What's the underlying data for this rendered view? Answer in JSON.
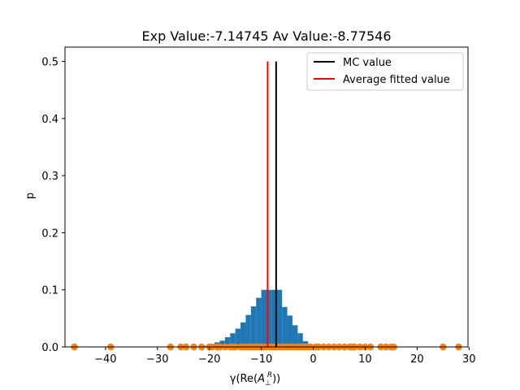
{
  "chart_data": {
    "type": "histogram",
    "title": "Exp Value:-7.14745 Av Value:-8.77546",
    "xlabel_parts": {
      "pre": "γ(Re(",
      "base": "A",
      "sub": "⊥",
      "sup": "R",
      "post": "))"
    },
    "ylabel": "p",
    "xlim": [
      -47.8,
      29.8
    ],
    "ylim": [
      0,
      0.525
    ],
    "xticks": [
      -40,
      -30,
      -20,
      -10,
      0,
      10,
      20,
      30
    ],
    "yticks": [
      0.0,
      0.1,
      0.2,
      0.3,
      0.4,
      0.5
    ],
    "histogram": {
      "color": "#1f77b4",
      "bin_edges": [
        -22,
        -21,
        -20,
        -19,
        -18,
        -17,
        -16,
        -15,
        -14,
        -13,
        -12,
        -11,
        -10,
        -9,
        -8,
        -7,
        -6,
        -5,
        -4,
        -3,
        -2,
        -1
      ],
      "values": [
        0.002,
        0.002,
        0.005,
        0.008,
        0.011,
        0.017,
        0.024,
        0.032,
        0.043,
        0.056,
        0.071,
        0.086,
        0.1,
        0.1,
        0.1,
        0.1,
        0.07,
        0.055,
        0.038,
        0.024,
        0.01
      ]
    },
    "scatter": {
      "color": "#ff7f0e",
      "y": 0,
      "x": [
        -46,
        -39,
        -27.5,
        -25.5,
        -24.5,
        -23,
        -21.5,
        -20,
        -19.5,
        -18.5,
        -18,
        -17,
        -16,
        -15.5,
        -15,
        -14,
        -13.5,
        -13,
        -12.5,
        -12,
        -11.5,
        -11,
        -10.5,
        -10,
        -9.5,
        -9,
        -8.5,
        -8,
        -7.5,
        -7,
        -6.5,
        -6,
        -5.5,
        -5,
        -4.5,
        -4,
        -3.5,
        -3,
        -2.5,
        -2,
        -1.5,
        -1,
        -0.5,
        0.5,
        1,
        2,
        3,
        4,
        5,
        6,
        7,
        7.5,
        8,
        9,
        10,
        11,
        13,
        14,
        15,
        15.5,
        25,
        28
      ]
    },
    "vlines": [
      {
        "name": "MC value",
        "x": -7.14745,
        "y0": 0,
        "y1": 0.5,
        "color": "#000000"
      },
      {
        "name": "Average fitted value",
        "x": -8.77546,
        "y0": 0,
        "y1": 0.5,
        "color": "#ff0000"
      }
    ],
    "legend": {
      "placement": "top-right",
      "entries": [
        "MC value",
        "Average fitted value"
      ]
    }
  }
}
